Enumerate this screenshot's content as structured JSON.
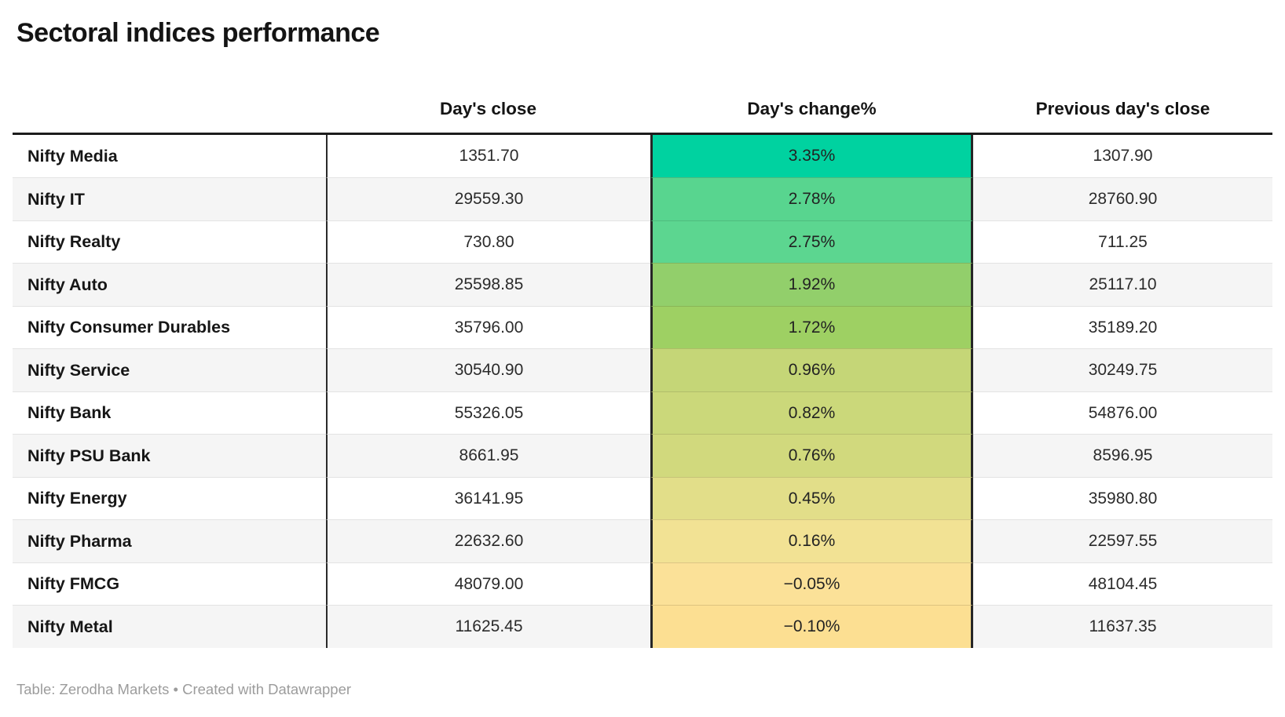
{
  "title": "Sectoral indices performance",
  "chart_data": {
    "type": "table",
    "title": "Sectoral indices performance",
    "columns": [
      "",
      "Day's close",
      "Day's change%",
      "Previous day's close"
    ],
    "heatmap_column": "Day's change%",
    "heatmap_note": "Day's change% cells colored on green-to-yellow scale, high to low",
    "rows": [
      {
        "name": "Nifty Media",
        "close": "1351.70",
        "change": "3.35%",
        "prev": "1307.90",
        "color": "#00d2a0"
      },
      {
        "name": "Nifty IT",
        "close": "29559.30",
        "change": "2.78%",
        "prev": "28760.90",
        "color": "#58d58f"
      },
      {
        "name": "Nifty Realty",
        "close": "730.80",
        "change": "2.75%",
        "prev": "711.25",
        "color": "#5cd690"
      },
      {
        "name": "Nifty Auto",
        "close": "25598.85",
        "change": "1.92%",
        "prev": "25117.10",
        "color": "#92cf6b"
      },
      {
        "name": "Nifty Consumer Durables",
        "close": "35796.00",
        "change": "1.72%",
        "prev": "35189.20",
        "color": "#9ed063"
      },
      {
        "name": "Nifty Service",
        "close": "30540.90",
        "change": "0.96%",
        "prev": "30249.75",
        "color": "#c5d677"
      },
      {
        "name": "Nifty Bank",
        "close": "55326.05",
        "change": "0.82%",
        "prev": "54876.00",
        "color": "#cbd87a"
      },
      {
        "name": "Nifty PSU Bank",
        "close": "8661.95",
        "change": "0.76%",
        "prev": "8596.95",
        "color": "#d1d97d"
      },
      {
        "name": "Nifty Energy",
        "close": "36141.95",
        "change": "0.45%",
        "prev": "35980.80",
        "color": "#e2de89"
      },
      {
        "name": "Nifty Pharma",
        "close": "22632.60",
        "change": "0.16%",
        "prev": "22597.55",
        "color": "#f2e294"
      },
      {
        "name": "Nifty FMCG",
        "close": "48079.00",
        "change": "−0.05%",
        "prev": "48104.45",
        "color": "#fbe198"
      },
      {
        "name": "Nifty Metal",
        "close": "11625.45",
        "change": "−0.10%",
        "prev": "11637.35",
        "color": "#fcdf92"
      }
    ]
  },
  "footer": {
    "prefix": "Table: ",
    "source": "Zerodha Markets",
    "separator": " • ",
    "created": "Created with ",
    "brand": "Datawrapper"
  }
}
